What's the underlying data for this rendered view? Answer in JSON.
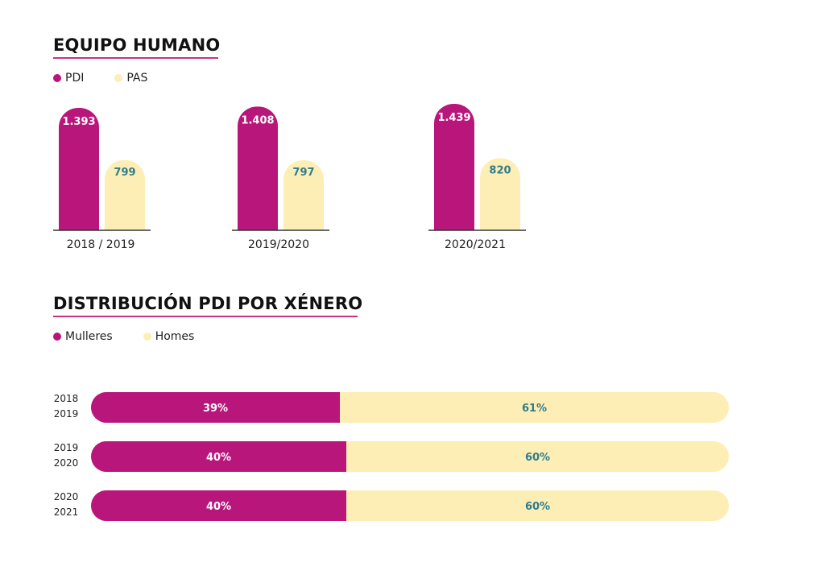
{
  "colors": {
    "pdi": "#b9167c",
    "pas": "#fdeeb5",
    "pas_text": "#2f7c8c",
    "axis": "#333333"
  },
  "chart_data": [
    {
      "type": "bar",
      "title": "EQUIPO HUMANO",
      "categories": [
        "2018 / 2019",
        "2019/2020",
        "2020/2021"
      ],
      "series": [
        {
          "name": "PDI",
          "values": [
            1393,
            1408,
            1439
          ],
          "labels": [
            "1.393",
            "1.408",
            "1.439"
          ]
        },
        {
          "name": "PAS",
          "values": [
            799,
            797,
            820
          ],
          "labels": [
            "799",
            "797",
            "820"
          ]
        }
      ]
    },
    {
      "type": "bar",
      "orientation": "horizontal-stacked-100",
      "title": "DISTRIBUCIÓN PDI POR XÉNERO",
      "categories": [
        [
          "2018",
          "2019"
        ],
        [
          "2019",
          "2020"
        ],
        [
          "2020",
          "2021"
        ]
      ],
      "series": [
        {
          "name": "Mulleres",
          "values": [
            39,
            40,
            40
          ],
          "labels": [
            "39%",
            "40%",
            "40%"
          ]
        },
        {
          "name": "Homes",
          "values": [
            61,
            60,
            60
          ],
          "labels": [
            "61%",
            "60%",
            "60%"
          ]
        }
      ]
    }
  ]
}
